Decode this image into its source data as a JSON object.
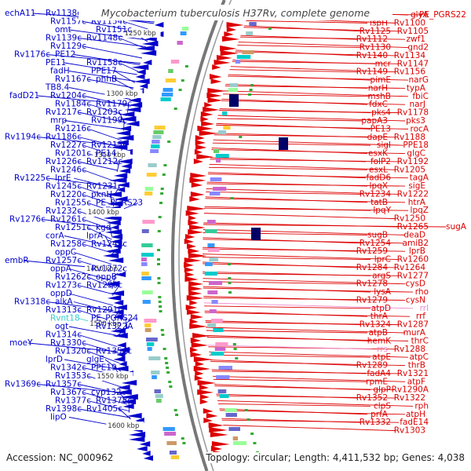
{
  "title": "Mycobacterium tuberculosis H37Rv, complete genome",
  "footer": {
    "accession": "Accession: NC_000962",
    "topology": "Topology: circular; Length: 4,411,532 bp; Genes: 4,038"
  },
  "colors": {
    "minus_strand": "#0000cc",
    "plus_strand": "#dd0000",
    "rna": "#33cccc",
    "rna_pink": "#ee88cc",
    "backbone": "#666666",
    "tick_label": "#333333"
  },
  "kbp_labels": [
    "1250 kbp",
    "1300 kbp",
    "1350 kbp",
    "1400 kbp",
    "1450 kbp",
    "1500 kbp",
    "1550 kbp",
    "1600 kbp"
  ],
  "left_labels": [
    {
      "text": "echA11",
      "color": "minus"
    },
    {
      "text": "Rv1138c",
      "color": "minus"
    },
    {
      "text": "Rv1157c",
      "color": "minus"
    },
    {
      "text": "Rv1154c",
      "color": "minus"
    },
    {
      "text": "omt",
      "color": "minus"
    },
    {
      "text": "Rv1151c",
      "color": "minus"
    },
    {
      "text": "Rv1139c",
      "color": "minus"
    },
    {
      "text": "Rv1148c",
      "color": "minus"
    },
    {
      "text": "Rv1129c",
      "color": "minus"
    },
    {
      "text": "Rv1176c",
      "color": "minus"
    },
    {
      "text": "PE12",
      "color": "minus"
    },
    {
      "text": "PE11",
      "color": "minus"
    },
    {
      "text": "Rv1158c",
      "color": "minus"
    },
    {
      "text": "fadH",
      "color": "minus"
    },
    {
      "text": "PPE17",
      "color": "minus"
    },
    {
      "text": "Rv1167c",
      "color": "minus"
    },
    {
      "text": "phhB",
      "color": "minus"
    },
    {
      "text": "TB8.4",
      "color": "minus"
    },
    {
      "text": "fadD21",
      "color": "minus"
    },
    {
      "text": "Rv1204c",
      "color": "minus"
    },
    {
      "text": "Rv1184c",
      "color": "minus"
    },
    {
      "text": "Rv1179c",
      "color": "minus"
    },
    {
      "text": "Rv1217c",
      "color": "minus"
    },
    {
      "text": "Rv1203c",
      "color": "minus"
    },
    {
      "text": "mrp",
      "color": "minus"
    },
    {
      "text": "Rv1199c",
      "color": "minus"
    },
    {
      "text": "Rv1216c",
      "color": "minus"
    },
    {
      "text": "Rv1194c",
      "color": "minus"
    },
    {
      "text": "Rv1186c",
      "color": "minus"
    },
    {
      "text": "Rv1227c",
      "color": "minus"
    },
    {
      "text": "Rv1215c",
      "color": "minus"
    },
    {
      "text": "Rv1201c",
      "color": "minus"
    },
    {
      "text": "PE14",
      "color": "minus"
    },
    {
      "text": "Rv1226c",
      "color": "minus"
    },
    {
      "text": "Rv1212c",
      "color": "minus"
    },
    {
      "text": "Rv1246c",
      "color": "minus"
    },
    {
      "text": "Rv1225c",
      "color": "minus"
    },
    {
      "text": "lprE",
      "color": "minus"
    },
    {
      "text": "Rv1245c",
      "color": "minus"
    },
    {
      "text": "Rv1231c",
      "color": "minus"
    },
    {
      "text": "Rv1220c",
      "color": "minus"
    },
    {
      "text": "pknH",
      "color": "minus"
    },
    {
      "text": "Rv1255c",
      "color": "minus"
    },
    {
      "text": "PE_PGRS23",
      "color": "minus"
    },
    {
      "text": "Rv1232c",
      "color": "minus"
    },
    {
      "text": "Rv1276c",
      "color": "minus"
    },
    {
      "text": "Rv1261c",
      "color": "minus"
    },
    {
      "text": "Rv1251c",
      "color": "minus"
    },
    {
      "text": "kgd",
      "color": "minus"
    },
    {
      "text": "corA",
      "color": "minus"
    },
    {
      "text": "lprA",
      "color": "minus"
    },
    {
      "text": "Rv1258c",
      "color": "minus"
    },
    {
      "text": "Rv1249c",
      "color": "minus"
    },
    {
      "text": "oppC",
      "color": "minus"
    },
    {
      "text": "embR",
      "color": "minus"
    },
    {
      "text": "Rv1257c",
      "color": "minus"
    },
    {
      "text": "oppA",
      "color": "minus"
    },
    {
      "text": "Rv1272c",
      "color": "minus"
    },
    {
      "text": "Rv1262c",
      "color": "minus"
    },
    {
      "text": "oppB",
      "color": "minus"
    },
    {
      "text": "Rv1273c",
      "color": "minus"
    },
    {
      "text": "Rv1290c",
      "color": "minus"
    },
    {
      "text": "oppD",
      "color": "minus"
    },
    {
      "text": "Rv1318c",
      "color": "minus"
    },
    {
      "text": "alkA",
      "color": "minus"
    },
    {
      "text": "Rv1313c",
      "color": "minus"
    },
    {
      "text": "Rv1291c",
      "color": "minus"
    },
    {
      "text": "Rvnt18",
      "color": "rna"
    },
    {
      "text": "PE_PGRS24",
      "color": "minus"
    },
    {
      "text": "ogt",
      "color": "minus"
    },
    {
      "text": "Rv1322A",
      "color": "minus"
    },
    {
      "text": "Rv1314c",
      "color": "minus"
    },
    {
      "text": "moeY",
      "color": "minus"
    },
    {
      "text": "Rv1330c",
      "color": "minus"
    },
    {
      "text": "Rv1320c",
      "color": "minus"
    },
    {
      "text": "Rv1354c",
      "color": "minus"
    },
    {
      "text": "lprD",
      "color": "minus"
    },
    {
      "text": "glgE",
      "color": "minus"
    },
    {
      "text": "Rv1342c",
      "color": "minus"
    },
    {
      "text": "PPE19",
      "color": "minus"
    },
    {
      "text": "Rv1353c",
      "color": "minus"
    },
    {
      "text": "Rv1369c",
      "color": "minus"
    },
    {
      "text": "Rv1357c",
      "color": "minus"
    },
    {
      "text": "Rv1367c",
      "color": "minus"
    },
    {
      "text": "cyp132",
      "color": "minus"
    },
    {
      "text": "Rv1377c",
      "color": "minus"
    },
    {
      "text": "Rv1378c",
      "color": "minus"
    },
    {
      "text": "Rv1398c",
      "color": "minus"
    },
    {
      "text": "Rv1405c",
      "color": "minus"
    },
    {
      "text": "lipO",
      "color": "minus"
    }
  ],
  "right_labels": [
    {
      "text": "PE_PGRS22",
      "color": "plus"
    },
    {
      "text": "glyA",
      "color": "plus"
    },
    {
      "text": "Rv1100",
      "color": "plus"
    },
    {
      "text": "ispH",
      "color": "plus"
    },
    {
      "text": "Rv1105",
      "color": "plus"
    },
    {
      "text": "Rv1125",
      "color": "plus"
    },
    {
      "text": "zwf1",
      "color": "plus"
    },
    {
      "text": "Rv1112",
      "color": "plus"
    },
    {
      "text": "gnd2",
      "color": "plus"
    },
    {
      "text": "Rv1130",
      "color": "plus"
    },
    {
      "text": "Rv1134",
      "color": "plus"
    },
    {
      "text": "Rv1140",
      "color": "plus"
    },
    {
      "text": "Rv1147",
      "color": "plus"
    },
    {
      "text": "mcr",
      "color": "plus"
    },
    {
      "text": "Rv1156",
      "color": "plus"
    },
    {
      "text": "Rv1149",
      "color": "plus"
    },
    {
      "text": "narG",
      "color": "plus"
    },
    {
      "text": "pimE",
      "color": "plus"
    },
    {
      "text": "typA",
      "color": "plus"
    },
    {
      "text": "narH",
      "color": "plus"
    },
    {
      "text": "fbiC",
      "color": "plus"
    },
    {
      "text": "mshB",
      "color": "plus"
    },
    {
      "text": "narJ",
      "color": "plus"
    },
    {
      "text": "fdxC",
      "color": "plus"
    },
    {
      "text": "Rv1178",
      "color": "plus"
    },
    {
      "text": "pks4",
      "color": "plus"
    },
    {
      "text": "pks3",
      "color": "plus"
    },
    {
      "text": "papA3",
      "color": "plus"
    },
    {
      "text": "rocA",
      "color": "plus"
    },
    {
      "text": "PE13",
      "color": "plus"
    },
    {
      "text": "Rv1188",
      "color": "plus"
    },
    {
      "text": "dapE",
      "color": "plus"
    },
    {
      "text": "PPE18",
      "color": "plus"
    },
    {
      "text": "sigI",
      "color": "plus"
    },
    {
      "text": "glgC",
      "color": "plus"
    },
    {
      "text": "esxK",
      "color": "plus"
    },
    {
      "text": "Rv1192",
      "color": "plus"
    },
    {
      "text": "folP2",
      "color": "plus"
    },
    {
      "text": "Rv1205",
      "color": "plus"
    },
    {
      "text": "esxL",
      "color": "plus"
    },
    {
      "text": "tagA",
      "color": "plus"
    },
    {
      "text": "fadD6",
      "color": "plus"
    },
    {
      "text": "sigE",
      "color": "plus"
    },
    {
      "text": "lpqX",
      "color": "plus"
    },
    {
      "text": "Rv1222",
      "color": "plus"
    },
    {
      "text": "Rv1234",
      "color": "plus"
    },
    {
      "text": "htrA",
      "color": "plus"
    },
    {
      "text": "tatB",
      "color": "plus"
    },
    {
      "text": "lpqZ",
      "color": "plus"
    },
    {
      "text": "lpqY",
      "color": "plus"
    },
    {
      "text": "Rv1250",
      "color": "plus"
    },
    {
      "text": "sugA",
      "color": "plus"
    },
    {
      "text": "Rv1265",
      "color": "plus"
    },
    {
      "text": "deaD",
      "color": "plus"
    },
    {
      "text": "sugB",
      "color": "plus"
    },
    {
      "text": "amiB2",
      "color": "plus"
    },
    {
      "text": "Rv1254",
      "color": "plus"
    },
    {
      "text": "lprB",
      "color": "plus"
    },
    {
      "text": "Rv1259",
      "color": "plus"
    },
    {
      "text": "Rv1260",
      "color": "plus"
    },
    {
      "text": "lprC",
      "color": "plus"
    },
    {
      "text": "Rv1264",
      "color": "plus"
    },
    {
      "text": "Rv1284",
      "color": "plus"
    },
    {
      "text": "Rv1277",
      "color": "plus"
    },
    {
      "text": "argS",
      "color": "plus"
    },
    {
      "text": "cysD",
      "color": "plus"
    },
    {
      "text": "Rv1278",
      "color": "plus"
    },
    {
      "text": "rho",
      "color": "plus"
    },
    {
      "text": "lysA",
      "color": "plus"
    },
    {
      "text": "cysN",
      "color": "plus"
    },
    {
      "text": "Rv1279",
      "color": "plus"
    },
    {
      "text": "rrl",
      "color": "pink"
    },
    {
      "text": "atpD",
      "color": "plus"
    },
    {
      "text": "rrf",
      "color": "plus"
    },
    {
      "text": "thrA",
      "color": "plus"
    },
    {
      "text": "Rv1287",
      "color": "plus"
    },
    {
      "text": "Rv1324",
      "color": "plus"
    },
    {
      "text": "murA",
      "color": "plus"
    },
    {
      "text": "atpB",
      "color": "plus"
    },
    {
      "text": "thrC",
      "color": "plus"
    },
    {
      "text": "hemK",
      "color": "plus"
    },
    {
      "text": "Rv1288",
      "color": "plus"
    },
    {
      "text": "rrs",
      "color": "pink"
    },
    {
      "text": "atpC",
      "color": "plus"
    },
    {
      "text": "atpE",
      "color": "plus"
    },
    {
      "text": "thrB",
      "color": "plus"
    },
    {
      "text": "Rv1289",
      "color": "plus"
    },
    {
      "text": "Rv1321",
      "color": "plus"
    },
    {
      "text": "fadA4",
      "color": "plus"
    },
    {
      "text": "atpF",
      "color": "plus"
    },
    {
      "text": "rpmE",
      "color": "plus"
    },
    {
      "text": "Rv1290A",
      "color": "plus"
    },
    {
      "text": "glpP",
      "color": "plus"
    },
    {
      "text": "Rv1322",
      "color": "plus"
    },
    {
      "text": "Rv1352",
      "color": "plus"
    },
    {
      "text": "rph",
      "color": "plus"
    },
    {
      "text": "clpS",
      "color": "plus"
    },
    {
      "text": "atpH",
      "color": "plus"
    },
    {
      "text": "prfA",
      "color": "plus"
    },
    {
      "text": "fadE14",
      "color": "plus"
    },
    {
      "text": "Rv1332",
      "color": "plus"
    },
    {
      "text": "Rv1303",
      "color": "plus"
    }
  ]
}
